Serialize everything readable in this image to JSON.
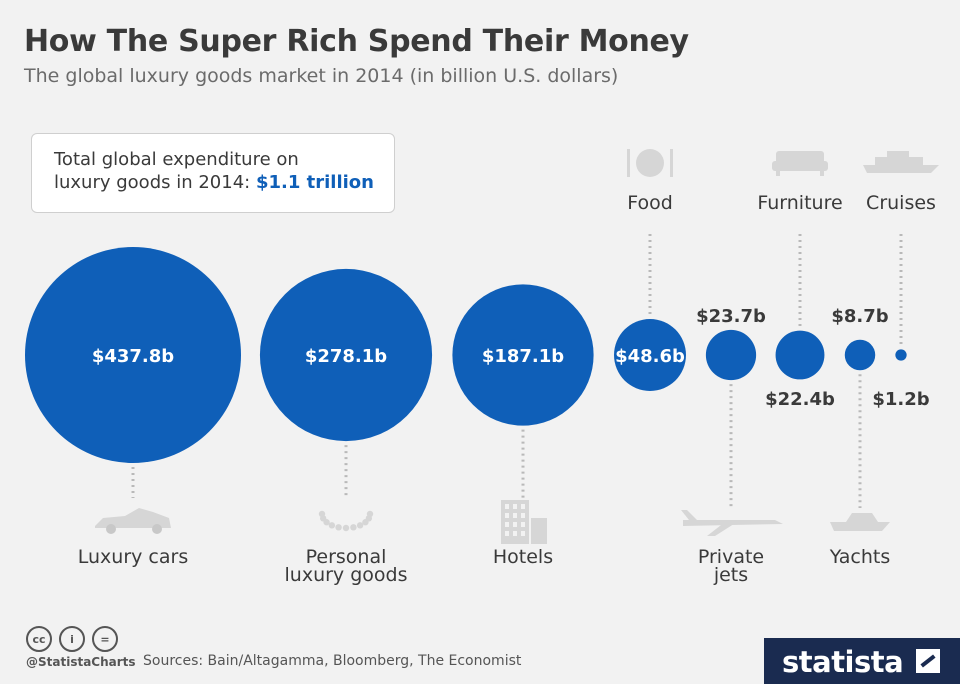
{
  "header": {
    "title": "How The Super Rich Spend Their Money",
    "subtitle": "The global luxury goods market in 2014 (in billion U.S. dollars)"
  },
  "total": {
    "text_line1": "Total global expenditure on",
    "text_line2": "luxury goods in 2014: ",
    "amount": "$1.1 trillion"
  },
  "chart_data": {
    "type": "bubble",
    "unit": "billion U.S. dollars",
    "series": [
      {
        "category": "Luxury cars",
        "value": 437.8,
        "label": "$437.8b",
        "icon": "car-icon"
      },
      {
        "category": "Personal luxury goods",
        "value": 278.1,
        "label": "$278.1b",
        "icon": "necklace-icon"
      },
      {
        "category": "Hotels",
        "value": 187.1,
        "label": "$187.1b",
        "icon": "hotel-icon"
      },
      {
        "category": "Food",
        "value": 48.6,
        "label": "$48.6b",
        "icon": "plate-icon"
      },
      {
        "category": "Private jets",
        "value": 23.7,
        "label": "$23.7b",
        "icon": "jet-icon"
      },
      {
        "category": "Furniture",
        "value": 22.4,
        "label": "$22.4b",
        "icon": "sofa-icon"
      },
      {
        "category": "Yachts",
        "value": 8.7,
        "label": "$8.7b",
        "icon": "yacht-icon"
      },
      {
        "category": "Cruises",
        "value": 1.2,
        "label": "$1.2b",
        "icon": "cruise-ship-icon"
      }
    ],
    "color": "#0f5fb8"
  },
  "footer": {
    "handle": "@StatistaCharts",
    "sources": "Sources: Bain/Altagamma, Bloomberg, The Economist",
    "brand": "statista"
  }
}
